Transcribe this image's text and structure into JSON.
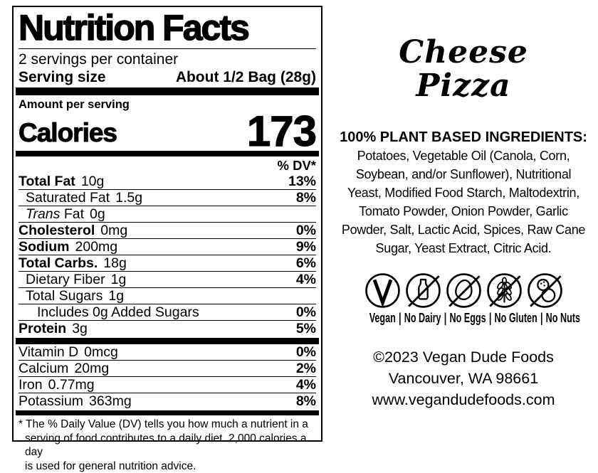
{
  "colors": {
    "ink": "#000000",
    "background": "#ffffff"
  },
  "nutrition_label": {
    "title": "Nutrition Facts",
    "servings_per_container": "2 servings per container",
    "serving_size_label": "Serving size",
    "serving_size_value": "About 1/2 Bag (28g)",
    "amount_per_serving_label": "Amount per serving",
    "calories_label": "Calories",
    "calories_value": "173",
    "daily_value_header": "% DV*",
    "main_rows": [
      {
        "name": "Total Fat",
        "amount": "10g",
        "dv": "13%",
        "bold": true,
        "indent": 0
      },
      {
        "name": "Saturated Fat",
        "amount": "1.5g",
        "dv": "8%",
        "bold": false,
        "indent": 1
      },
      {
        "name": "Trans Fat",
        "amount": "0g",
        "dv": "",
        "bold": false,
        "indent": 1,
        "italic_first_word": true
      },
      {
        "name": "Cholesterol",
        "amount": "0mg",
        "dv": "0%",
        "bold": true,
        "indent": 0
      },
      {
        "name": "Sodium",
        "amount": "200mg",
        "dv": "9%",
        "bold": true,
        "indent": 0
      },
      {
        "name": "Total Carbs.",
        "amount": "18g",
        "dv": "6%",
        "bold": true,
        "indent": 0
      },
      {
        "name": "Dietary Fiber",
        "amount": "1g",
        "dv": "4%",
        "bold": false,
        "indent": 1
      },
      {
        "name": "Total Sugars",
        "amount": "1g",
        "dv": "",
        "bold": false,
        "indent": 1
      },
      {
        "name": "Includes 0g Added Sugars",
        "amount": "",
        "dv": "0%",
        "bold": false,
        "indent": 2
      },
      {
        "name": "Protein",
        "amount": "3g",
        "dv": "5%",
        "bold": true,
        "indent": 0
      }
    ],
    "vitamin_rows": [
      {
        "name": "Vitamin D",
        "amount": "0mcg",
        "dv": "0%",
        "bold": false,
        "indent": 0
      },
      {
        "name": "Calcium",
        "amount": "20mg",
        "dv": "2%",
        "bold": false,
        "indent": 0
      },
      {
        "name": "Iron",
        "amount": "0.77mg",
        "dv": "4%",
        "bold": false,
        "indent": 0
      },
      {
        "name": "Potassium",
        "amount": "363mg",
        "dv": "8%",
        "bold": false,
        "indent": 0
      }
    ],
    "footnote_lines": [
      "* The % Daily Value (DV) tells you how much a nutrient in a",
      "serving of food contributes to a daily diet. 2,000 calories a day",
      "is used for general nutrition advice."
    ]
  },
  "right": {
    "product": {
      "name_lines": [
        "Cheese",
        "Pizza"
      ]
    },
    "ingredients": {
      "heading": "100% PLANT BASED INGREDIENTS:",
      "lines": [
        "Potatoes, Vegetable Oil (Canola, Corn,",
        "Soybean, and/or Sunflower), Nutritional",
        "Yeast, Modified Food Starch, Maltodextrin,",
        "Tomato Powder, Onion Powder, Garlic",
        "Powder, Salt, Lactic Acid, Spices, Raw Cane",
        "Sugar, Yeast Extract, Citric Acid."
      ]
    },
    "dietary_badges": {
      "separator": "|",
      "items": [
        {
          "icon": "vegan-icon",
          "label": "Vegan"
        },
        {
          "icon": "no-dairy-icon",
          "label": "No Dairy"
        },
        {
          "icon": "no-eggs-icon",
          "label": "No Eggs"
        },
        {
          "icon": "no-gluten-icon",
          "label": "No Gluten"
        },
        {
          "icon": "no-nuts-icon",
          "label": "No Nuts"
        }
      ]
    },
    "footer": {
      "lines": [
        "©2023 Vegan Dude Foods",
        "Vancouver, WA 98661",
        "www.vegandudefoods.com"
      ]
    }
  }
}
